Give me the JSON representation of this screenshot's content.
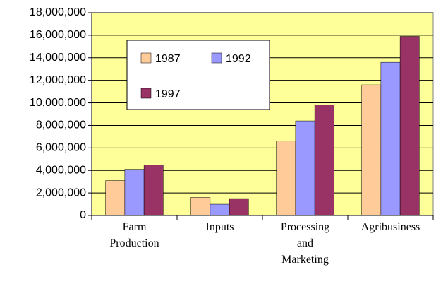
{
  "chart_data": {
    "type": "bar",
    "categories": [
      "Farm Production",
      "Inputs",
      "Processing and Marketing",
      "Agribusiness"
    ],
    "series": [
      {
        "name": "1987",
        "color": "#ffcc99",
        "values": [
          3100000,
          1600000,
          6600000,
          11600000
        ]
      },
      {
        "name": "1992",
        "color": "#9999ff",
        "values": [
          4100000,
          1000000,
          8400000,
          13600000
        ]
      },
      {
        "name": "1997",
        "color": "#993366",
        "values": [
          4500000,
          1500000,
          9800000,
          15900000
        ]
      }
    ],
    "ylim": [
      0,
      18000000
    ],
    "yticks": [
      0,
      {
        "value": 2000000,
        "label": "2,000,000"
      },
      {
        "value": 4000000,
        "label": "4,000,000"
      },
      {
        "value": 6000000,
        "label": "6,000,000"
      },
      {
        "value": 8000000,
        "label": "8,000,000"
      },
      {
        "value": 10000000,
        "label": "10,000,000"
      },
      {
        "value": 12000000,
        "label": "12,000,000"
      },
      {
        "value": 14000000,
        "label": "14,000,000"
      },
      {
        "value": 16000000,
        "label": "16,000,000"
      },
      {
        "value": 18000000,
        "label": "18,000,000"
      }
    ],
    "grid": true,
    "background": "#ffff99"
  }
}
